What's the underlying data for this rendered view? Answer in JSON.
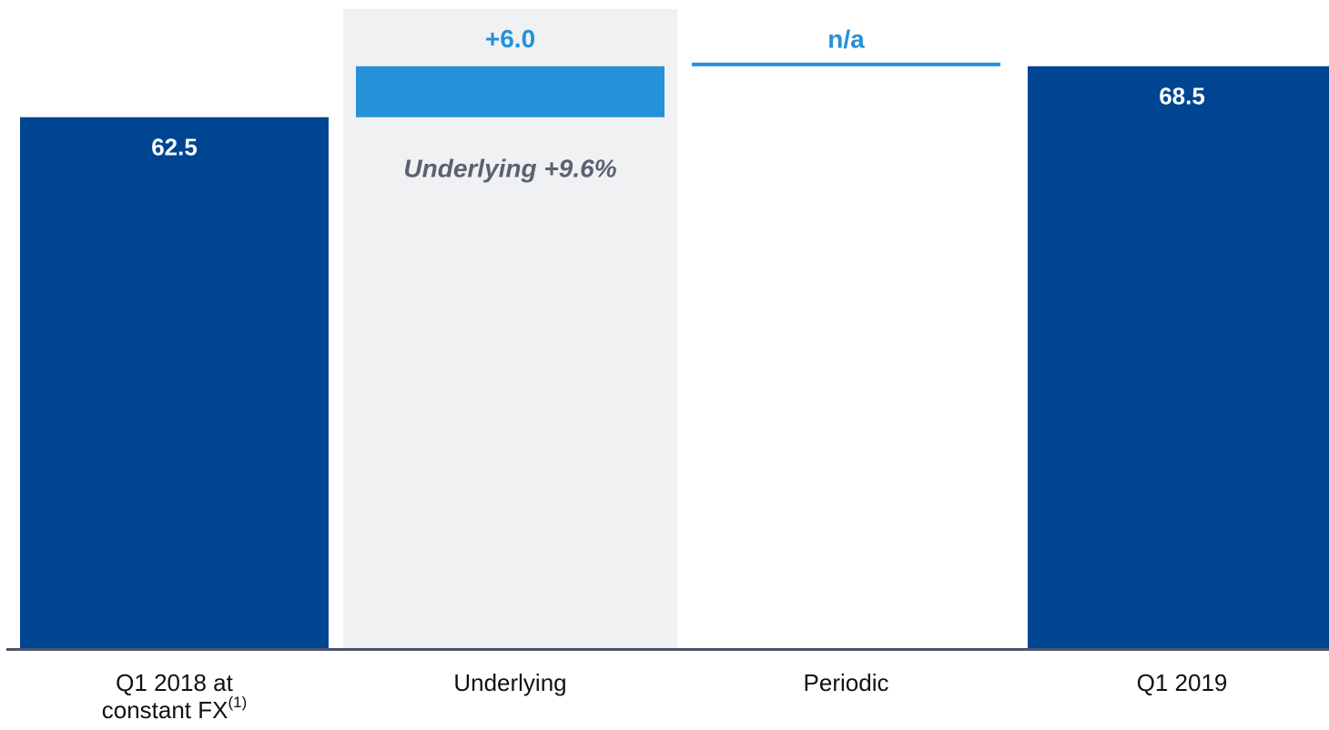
{
  "chart_data": {
    "type": "waterfall",
    "categories": [
      "Q1 2018 at\nconstant FX",
      "Underlying",
      "Periodic",
      "Q1 2019"
    ],
    "category_notes": [
      "(1)",
      null,
      null,
      null
    ],
    "values": [
      62.5,
      6.0,
      null,
      68.5
    ],
    "value_labels": [
      "62.5",
      "+6.0",
      "n/a",
      "68.5"
    ],
    "totals": [
      true,
      false,
      false,
      true
    ],
    "total_color": "#004592",
    "delta_color": "#2491d9",
    "highlight_index": 1,
    "highlight_color": "#f0f1f3",
    "annotation": "Underlying +9.6%",
    "annotation_index": 1,
    "ylim": [
      0,
      76.3
    ]
  }
}
